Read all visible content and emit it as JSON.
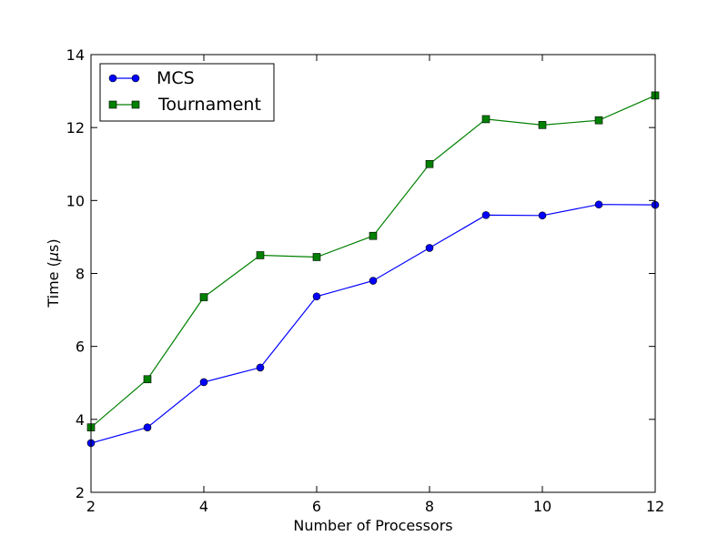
{
  "chart_data": {
    "type": "line",
    "title": "",
    "xlabel": "Number of Processors",
    "ylabel_prefix": "Time (",
    "ylabel_unit": "μ",
    "ylabel_suffix": "s)",
    "xlim": [
      2,
      12
    ],
    "ylim": [
      2,
      14
    ],
    "xticks": [
      2,
      4,
      6,
      8,
      10,
      12
    ],
    "yticks": [
      2,
      4,
      6,
      8,
      10,
      12,
      14
    ],
    "grid": false,
    "legend_position": "top-left",
    "x": [
      2,
      3,
      4,
      5,
      6,
      7,
      8,
      9,
      10,
      11,
      12
    ],
    "series": [
      {
        "name": "MCS",
        "marker": "circle",
        "color": "#0000ff",
        "values": [
          3.35,
          3.78,
          5.02,
          5.42,
          7.37,
          7.8,
          8.7,
          9.6,
          9.59,
          9.89,
          9.88
        ]
      },
      {
        "name": "Tournament",
        "marker": "square",
        "color": "#008000",
        "values": [
          3.78,
          5.1,
          7.35,
          8.5,
          8.45,
          9.03,
          11.0,
          12.23,
          12.07,
          12.2,
          12.88
        ]
      }
    ]
  }
}
